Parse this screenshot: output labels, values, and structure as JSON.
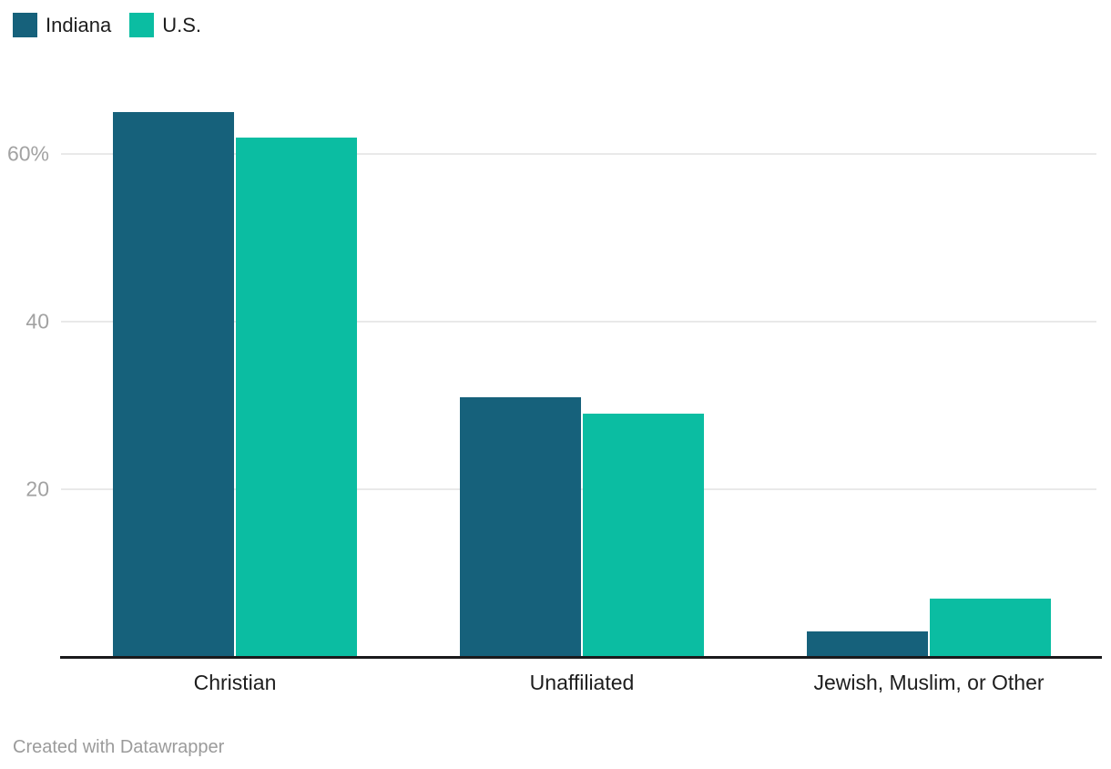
{
  "legend": {
    "items": [
      {
        "label": "Indiana",
        "color": "#16617b"
      },
      {
        "label": "U.S.",
        "color": "#0bbda2"
      }
    ]
  },
  "chart_data": {
    "type": "bar",
    "title": "",
    "xlabel": "",
    "ylabel": "",
    "categories": [
      "Christian",
      "Unaffiliated",
      "Jewish, Muslim, or Other"
    ],
    "series": [
      {
        "name": "Indiana",
        "color": "#16617b",
        "values": [
          65,
          31,
          3
        ]
      },
      {
        "name": "U.S.",
        "color": "#0bbda2",
        "values": [
          62,
          29,
          7
        ]
      }
    ],
    "unit": "%",
    "ylim": [
      0,
      70
    ],
    "yticks": [
      {
        "value": 20,
        "label": "20"
      },
      {
        "value": 40,
        "label": "40"
      },
      {
        "value": 60,
        "label": "60%"
      }
    ],
    "grid": "horizontal",
    "legend_position": "top-left"
  },
  "footer": {
    "credit": "Created with Datawrapper"
  }
}
